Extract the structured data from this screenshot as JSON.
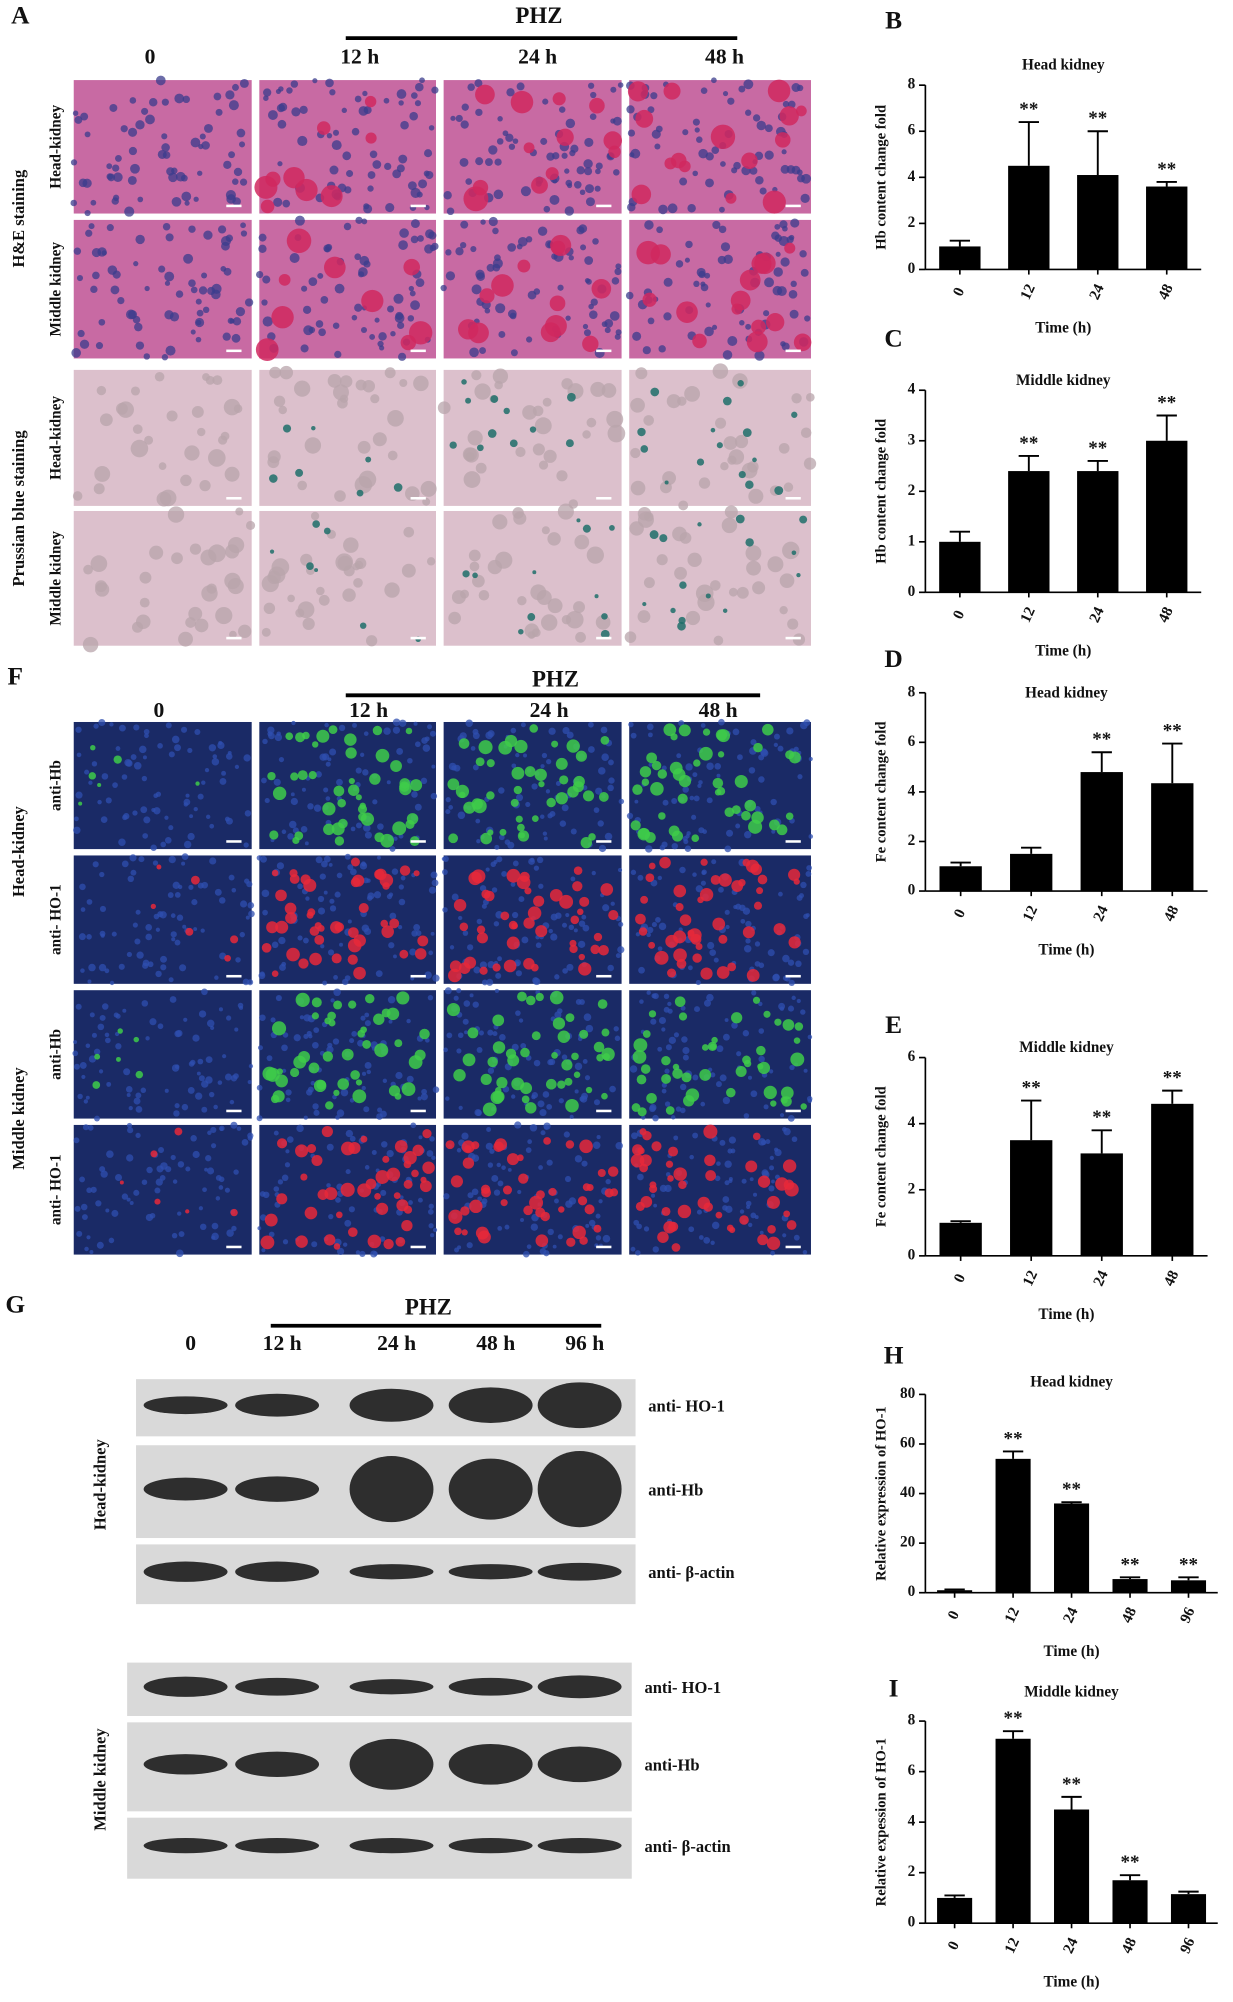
{
  "panels": {
    "panel_a": {
      "label": "A",
      "treatment": "PHZ",
      "columns": [
        "0",
        "12 h",
        "24 h",
        "48 h"
      ],
      "rows": [
        "Head-kidney",
        "Middle kidney",
        "Head-kidney",
        "Middle kidney"
      ],
      "groups": [
        "H&E staining",
        "Prussian blue staining"
      ]
    },
    "panel_f": {
      "label": "F",
      "treatment": "PHZ",
      "columns": [
        "0",
        "12 h",
        "24 h",
        "48 h"
      ],
      "rows": [
        "anti-Hb",
        "anti- HO-1",
        "anti-Hb",
        "anti- HO-1"
      ],
      "groups": [
        "Head-kidney",
        "Middle kidney"
      ]
    },
    "panel_g": {
      "label": "G",
      "treatment": "PHZ",
      "columns": [
        "0",
        "12 h",
        "24 h",
        "48 h",
        "96 h"
      ],
      "rows": [
        "anti- HO-1",
        "anti-Hb",
        "anti- β-actin",
        "anti- HO-1",
        "anti-Hb",
        "anti- β-actin"
      ],
      "groups": [
        "Head-kidney",
        "Middle kidney"
      ]
    }
  },
  "chart_data": [
    {
      "type": "bar",
      "label": "B",
      "title": "Head kidney",
      "ylabel": "Hb content change fold",
      "xlabel": "Time (h)",
      "categories": [
        "0",
        "12",
        "24",
        "48"
      ],
      "values": [
        1.0,
        4.5,
        4.1,
        3.6
      ],
      "errors": [
        0.25,
        1.9,
        1.9,
        0.2
      ],
      "significance": [
        null,
        "**",
        "**",
        "**"
      ],
      "color": "#000000",
      "ylim": [
        0,
        8
      ],
      "yticks": [
        0,
        2,
        4,
        6,
        8
      ]
    },
    {
      "type": "bar",
      "label": "C",
      "title": "Middle kidney",
      "ylabel": "Hb content change fold",
      "xlabel": "Time (h)",
      "categories": [
        "0",
        "12",
        "24",
        "48"
      ],
      "values": [
        1.0,
        2.4,
        2.4,
        3.0
      ],
      "errors": [
        0.2,
        0.3,
        0.2,
        0.5
      ],
      "significance": [
        null,
        "**",
        "**",
        "**"
      ],
      "color": "#000000",
      "ylim": [
        0,
        4
      ],
      "yticks": [
        0,
        1,
        2,
        3,
        4
      ]
    },
    {
      "type": "bar",
      "label": "D",
      "title": "Head kidney",
      "ylabel": "Fe content change fold",
      "xlabel": "Time (h)",
      "categories": [
        "0",
        "12",
        "24",
        "48"
      ],
      "values": [
        1.0,
        1.5,
        4.8,
        4.35
      ],
      "errors": [
        0.15,
        0.25,
        0.8,
        1.6
      ],
      "significance": [
        null,
        null,
        "**",
        "**"
      ],
      "color": "#000000",
      "ylim": [
        0,
        8
      ],
      "yticks": [
        0,
        2,
        4,
        6,
        8
      ]
    },
    {
      "type": "bar",
      "label": "E",
      "title": "Middle kidney",
      "ylabel": "Fe content change fold",
      "xlabel": "Time (h)",
      "categories": [
        "0",
        "12",
        "24",
        "48"
      ],
      "values": [
        1.0,
        3.5,
        3.1,
        4.6
      ],
      "errors": [
        0.05,
        1.2,
        0.7,
        0.4
      ],
      "significance": [
        null,
        "**",
        "**",
        "**"
      ],
      "color": "#000000",
      "ylim": [
        0,
        6
      ],
      "yticks": [
        0,
        2,
        4,
        6
      ]
    },
    {
      "type": "bar",
      "label": "H",
      "title": "Head kidney",
      "ylabel": "Relative expression of HO-1",
      "xlabel": "Time (h)",
      "categories": [
        "0",
        "12",
        "24",
        "48",
        "96"
      ],
      "values": [
        1,
        54,
        36,
        5.5,
        5
      ],
      "errors": [
        0.3,
        3,
        0.5,
        0.7,
        1.2
      ],
      "significance": [
        null,
        "**",
        "**",
        "**",
        "**"
      ],
      "color": "#000000",
      "ylim": [
        0,
        80
      ],
      "yticks": [
        0,
        20,
        40,
        60,
        80
      ]
    },
    {
      "type": "bar",
      "label": "I",
      "title": "Middle kidney",
      "ylabel": "Relative expession of HO-1",
      "xlabel": "Time (h)",
      "categories": [
        "0",
        "12",
        "24",
        "48",
        "96"
      ],
      "values": [
        1.0,
        7.3,
        4.5,
        1.7,
        1.15
      ],
      "errors": [
        0.1,
        0.3,
        0.5,
        0.2,
        0.1
      ],
      "significance": [
        null,
        "**",
        "**",
        "**",
        null
      ],
      "color": "#000000",
      "ylim": [
        0,
        8
      ],
      "yticks": [
        0,
        2,
        4,
        6,
        8
      ]
    }
  ]
}
